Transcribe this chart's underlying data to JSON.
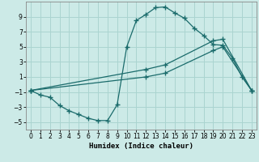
{
  "background_color": "#cceae7",
  "grid_color": "#aad4d0",
  "line_color": "#1a6b6b",
  "xlabel": "Humidex (Indice chaleur)",
  "ylim": [
    -6,
    11
  ],
  "xlim": [
    -0.5,
    23.5
  ],
  "yticks": [
    -5,
    -3,
    -1,
    1,
    3,
    5,
    7,
    9
  ],
  "xticks": [
    0,
    1,
    2,
    3,
    4,
    5,
    6,
    7,
    8,
    9,
    10,
    11,
    12,
    13,
    14,
    15,
    16,
    17,
    18,
    19,
    20,
    21,
    22,
    23
  ],
  "series1_x": [
    0,
    1,
    2,
    3,
    4,
    5,
    6,
    7,
    8,
    9,
    10,
    11,
    12,
    13,
    14,
    15,
    16,
    17,
    18,
    19,
    20,
    21,
    22,
    23
  ],
  "series1_y": [
    -0.8,
    -1.4,
    -1.7,
    -2.8,
    -3.5,
    -4.0,
    -4.5,
    -4.8,
    -4.8,
    -2.7,
    5.0,
    8.5,
    9.3,
    10.2,
    10.3,
    9.5,
    8.8,
    7.5,
    6.5,
    5.3,
    5.2,
    3.5,
    1.0,
    -0.8
  ],
  "series2_x": [
    0,
    12,
    14,
    19,
    20,
    23
  ],
  "series2_y": [
    -0.8,
    2.0,
    2.6,
    5.8,
    6.0,
    -0.8
  ],
  "series3_x": [
    0,
    12,
    14,
    19,
    20,
    23
  ],
  "series3_y": [
    -0.8,
    1.0,
    1.5,
    4.5,
    5.0,
    -0.8
  ]
}
